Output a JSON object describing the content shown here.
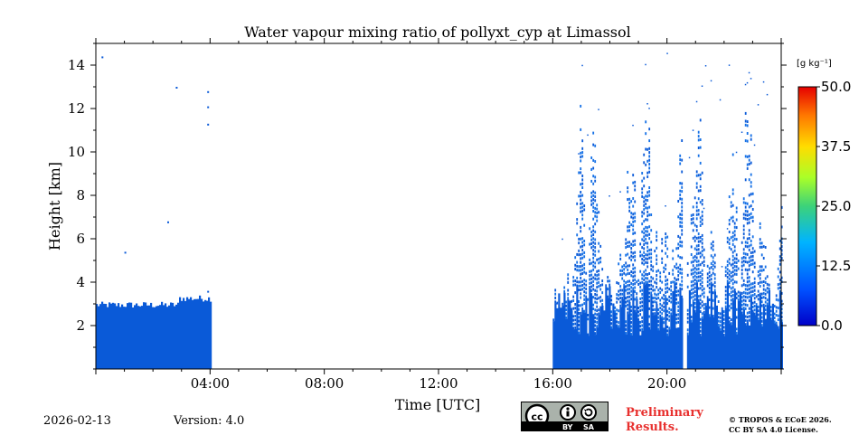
{
  "chart_data": {
    "type": "heatmap",
    "title": "Water vapour mixing ratio of pollyxt_cyp at Limassol",
    "xlabel": "Time [UTC]",
    "ylabel": "Height [km]",
    "xlim_hours": [
      0,
      24
    ],
    "ylim_km": [
      0,
      15
    ],
    "x_ticks": [
      {
        "hour": 4,
        "label": "04:00"
      },
      {
        "hour": 8,
        "label": "08:00"
      },
      {
        "hour": 12,
        "label": "12:00"
      },
      {
        "hour": 16,
        "label": "16:00"
      },
      {
        "hour": 20,
        "label": "20:00"
      }
    ],
    "y_ticks": [
      {
        "km": 2,
        "label": "2"
      },
      {
        "km": 4,
        "label": "4"
      },
      {
        "km": 6,
        "label": "6"
      },
      {
        "km": 8,
        "label": "8"
      },
      {
        "km": 10,
        "label": "10"
      },
      {
        "km": 12,
        "label": "12"
      },
      {
        "km": 14,
        "label": "14"
      }
    ],
    "colorbar": {
      "unit": "[g kg⁻¹]",
      "range": [
        0,
        50
      ],
      "ticks": [
        {
          "value": 0,
          "label": "0.0"
        },
        {
          "value": 12.5,
          "label": "12.5"
        },
        {
          "value": 25,
          "label": "25.0"
        },
        {
          "value": 37.5,
          "label": "37.5"
        },
        {
          "value": 50,
          "label": "50.0"
        }
      ],
      "colormap": "jet"
    },
    "fill_color": "#0a5ad8",
    "segments": [
      {
        "start_h": 0.0,
        "end_h": 4.0,
        "top_km_min": 2.5,
        "top_km_max": 3.7,
        "sparse_to_km": 13.0
      },
      {
        "start_h": 16.0,
        "end_h": 20.5,
        "top_km_min": 2.5,
        "top_km_max": 14.6,
        "sparse_to_km": 14.7
      },
      {
        "start_h": 20.7,
        "end_h": 24.0,
        "top_km_min": 3.0,
        "top_km_max": 14.6,
        "sparse_to_km": 14.7
      }
    ],
    "data_gaps_h": [
      [
        4.0,
        16.0
      ],
      [
        20.5,
        20.7
      ]
    ]
  },
  "footer": {
    "date": "2026-02-13",
    "version": "Version: 4.0",
    "license_badge": {
      "by": "BY",
      "sa": "SA"
    },
    "preliminary_line1": "Preliminary",
    "preliminary_line2": "Results.",
    "copyright_line1": "© TROPOS & ECoE 2026.",
    "copyright_line2": "CC BY SA 4.0 License."
  }
}
